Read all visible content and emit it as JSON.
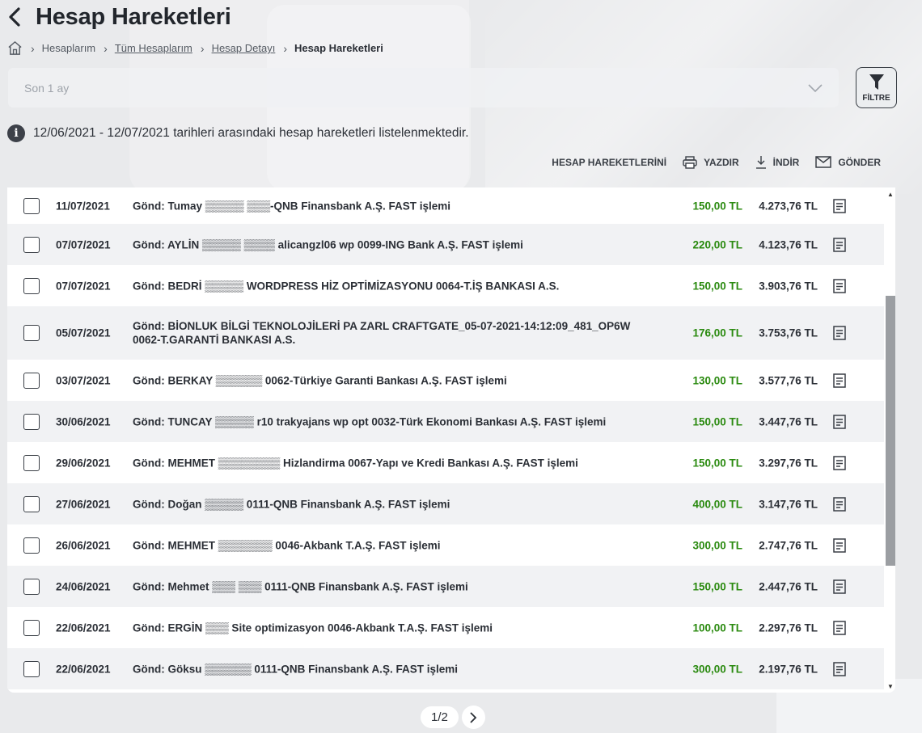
{
  "header": {
    "title": "Hesap Hareketleri"
  },
  "breadcrumb": {
    "items": [
      {
        "label": "Hesaplarım"
      },
      {
        "label": "Tüm Hesaplarım"
      },
      {
        "label": "Hesap Detayı"
      },
      {
        "label": "Hesap Hareketleri"
      }
    ]
  },
  "filter": {
    "period_value": "Son 1 ay",
    "button_label": "FİLTRE"
  },
  "info": {
    "text": "12/06/2021 - 12/07/2021 tarihleri arasındaki hesap hareketleri listelenmektedir."
  },
  "actions": {
    "prefix": "HESAP HAREKETLERİNİ",
    "print": "YAZDIR",
    "download": "İNDİR",
    "send": "GÖNDER"
  },
  "colors": {
    "amount": "#2a8a0f",
    "text": "#2b2f36",
    "background": "#e9eaec"
  },
  "transactions": [
    {
      "date": "11/07/2021",
      "description": "Gönd: Tumay ▒▒▒▒▒ ▒▒▒-QNB Finansbank A.Ş. FAST işlemi",
      "amount": "150,00 TL",
      "balance": "4.273,76 TL"
    },
    {
      "date": "07/07/2021",
      "description": "Gönd: AYLİN ▒▒▒▒▒ ▒▒▒▒ alicangzl06 wp 0099-ING Bank A.Ş. FAST işlemi",
      "amount": "220,00 TL",
      "balance": "4.123,76 TL"
    },
    {
      "date": "07/07/2021",
      "description": "Gönd: BEDRİ ▒▒▒▒▒ WORDPRESS HİZ OPTİMİZASYONU 0064-T.İŞ BANKASI A.S.",
      "amount": "150,00 TL",
      "balance": "3.903,76 TL"
    },
    {
      "date": "05/07/2021",
      "description": "Gönd: BİONLUK BİLGİ TEKNOLOJİLERİ PA ZARL CRAFTGATE_05-07-2021-14:12:09_481_OP6W 0062-T.GARANTİ BANKASI A.S.",
      "amount": "176,00 TL",
      "balance": "3.753,76 TL"
    },
    {
      "date": "03/07/2021",
      "description": "Gönd: BERKAY ▒▒▒▒▒▒ 0062-Türkiye Garanti Bankası A.Ş. FAST işlemi",
      "amount": "130,00 TL",
      "balance": "3.577,76 TL"
    },
    {
      "date": "30/06/2021",
      "description": "Gönd: TUNCAY ▒▒▒▒▒ r10 trakyajans wp opt 0032-Türk Ekonomi Bankası A.Ş. FAST işlemi",
      "amount": "150,00 TL",
      "balance": "3.447,76 TL"
    },
    {
      "date": "29/06/2021",
      "description": "Gönd: MEHMET ▒▒▒▒▒▒▒▒ Hizlandirma 0067-Yapı ve Kredi Bankası A.Ş. FAST işlemi",
      "amount": "150,00 TL",
      "balance": "3.297,76 TL"
    },
    {
      "date": "27/06/2021",
      "description": "Gönd: Doğan ▒▒▒▒▒ 0111-QNB Finansbank A.Ş. FAST işlemi",
      "amount": "400,00 TL",
      "balance": "3.147,76 TL"
    },
    {
      "date": "26/06/2021",
      "description": "Gönd: MEHMET ▒▒▒▒▒▒▒ 0046-Akbank T.A.Ş. FAST işlemi",
      "amount": "300,00 TL",
      "balance": "2.747,76 TL"
    },
    {
      "date": "24/06/2021",
      "description": "Gönd: Mehmet ▒▒▒ ▒▒▒ 0111-QNB Finansbank A.Ş. FAST işlemi",
      "amount": "150,00 TL",
      "balance": "2.447,76 TL"
    },
    {
      "date": "22/06/2021",
      "description": "Gönd: ERGİN ▒▒▒ Site optimizasyon 0046-Akbank T.A.Ş. FAST işlemi",
      "amount": "100,00 TL",
      "balance": "2.297,76 TL"
    },
    {
      "date": "22/06/2021",
      "description": "Gönd: Göksu ▒▒▒▒▒▒ 0111-QNB Finansbank A.Ş. FAST işlemi",
      "amount": "300,00 TL",
      "balance": "2.197,76 TL"
    }
  ],
  "pagination": {
    "label": "1/2"
  }
}
